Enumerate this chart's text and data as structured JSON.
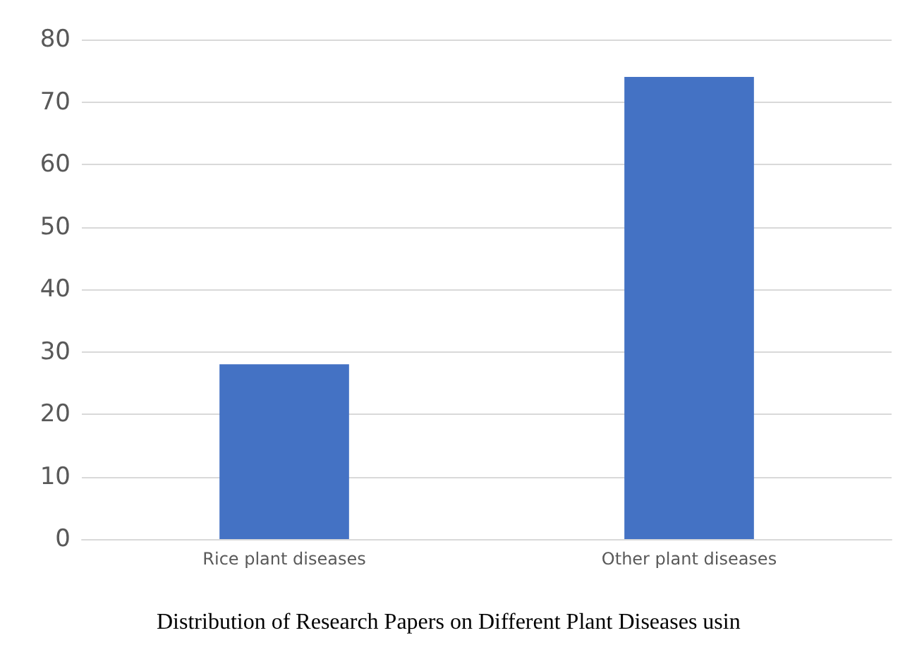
{
  "chart_data": {
    "type": "bar",
    "title": "Distribution of Research Papers on Different Plant Diseases usin",
    "categories": [
      "Rice plant diseases",
      "Other plant diseases"
    ],
    "values": [
      28,
      74
    ],
    "color": "#4472c4",
    "ylim": [
      0,
      80
    ],
    "yticks": [
      0,
      10,
      20,
      30,
      40,
      50,
      60,
      70,
      80
    ],
    "grid": "y"
  }
}
